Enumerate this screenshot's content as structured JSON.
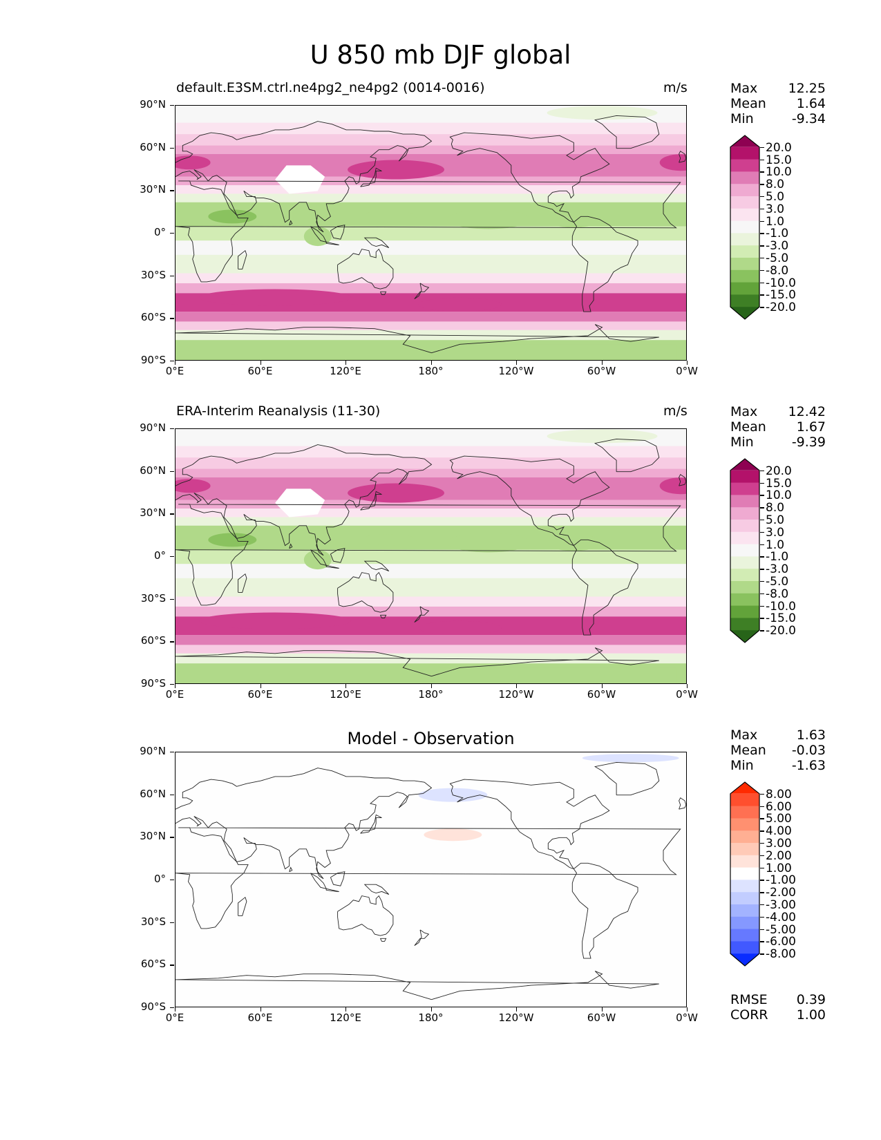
{
  "figure_title": "U 850 mb DJF global",
  "panels": [
    {
      "title": "default.E3SM.ctrl.ne4pg2_ne4pg2 (0014-0016)",
      "units": "m/s",
      "stats": [
        {
          "k": "Max",
          "v": "12.25"
        },
        {
          "k": "Mean",
          "v": "1.64"
        },
        {
          "k": "Min",
          "v": "-9.34"
        }
      ]
    },
    {
      "title": "ERA-Interim Reanalysis (11-30)",
      "units": "m/s",
      "stats": [
        {
          "k": "Max",
          "v": "12.42"
        },
        {
          "k": "Mean",
          "v": "1.67"
        },
        {
          "k": "Min",
          "v": "-9.39"
        }
      ]
    },
    {
      "title": "Model - Observation",
      "units": "",
      "stats": [
        {
          "k": "Max",
          "v": "1.63"
        },
        {
          "k": "Mean",
          "v": "-0.03"
        },
        {
          "k": "Min",
          "v": "-1.63"
        }
      ],
      "extra_stats": [
        {
          "k": "RMSE",
          "v": "0.39"
        },
        {
          "k": "CORR",
          "v": "1.00"
        }
      ]
    }
  ],
  "lat_ticks": [
    "90°N",
    "60°N",
    "30°N",
    "0°",
    "30°S",
    "60°S",
    "90°S"
  ],
  "lon_ticks": [
    "0°E",
    "60°E",
    "120°E",
    "180°",
    "120°W",
    "60°W",
    "0°W"
  ],
  "colorbar_main": {
    "labels": [
      "20.0",
      "15.0",
      "10.0",
      "8.0",
      "5.0",
      "3.0",
      "1.0",
      "-1.0",
      "-3.0",
      "-5.0",
      "-8.0",
      "-10.0",
      "-15.0",
      "-20.0"
    ],
    "colors": [
      "#8e0152",
      "#b3126a",
      "#cf3f8f",
      "#e07cb5",
      "#efaad1",
      "#f7cbe3",
      "#fbe4f0",
      "#f7f7f7",
      "#eaf4dc",
      "#d2ecb4",
      "#b0d989",
      "#8ac25f",
      "#62a33a",
      "#3e7f25",
      "#276419"
    ]
  },
  "colorbar_diff": {
    "labels": [
      "8.00",
      "6.00",
      "5.00",
      "4.00",
      "3.00",
      "2.00",
      "1.00",
      "-1.00",
      "-2.00",
      "-3.00",
      "-4.00",
      "-5.00",
      "-6.00",
      "-8.00"
    ],
    "colors": [
      "#ff2a00",
      "#ff4f2e",
      "#ff7052",
      "#ff9070",
      "#ffaf93",
      "#ffcab7",
      "#ffe3da",
      "#ffffff",
      "#dde3ff",
      "#c2cdff",
      "#a3b3ff",
      "#8598ff",
      "#6679ff",
      "#4159ff",
      "#0a2cff"
    ]
  },
  "map_fields": {
    "bands_main": [
      {
        "lat_top": 90,
        "lat_bot": 78,
        "color": "#f7f7f7"
      },
      {
        "lat_top": 78,
        "lat_bot": 70,
        "color": "#fbe4f0"
      },
      {
        "lat_top": 70,
        "lat_bot": 62,
        "color": "#f7cbe3"
      },
      {
        "lat_top": 62,
        "lat_bot": 56,
        "color": "#efaad1"
      },
      {
        "lat_top": 56,
        "lat_bot": 40,
        "color": "#e07cb5"
      },
      {
        "lat_top": 40,
        "lat_bot": 34,
        "color": "#efaad1"
      },
      {
        "lat_top": 34,
        "lat_bot": 28,
        "color": "#fbe4f0"
      },
      {
        "lat_top": 28,
        "lat_bot": 22,
        "color": "#eaf4dc"
      },
      {
        "lat_top": 22,
        "lat_bot": 5,
        "color": "#b0d989"
      },
      {
        "lat_top": 5,
        "lat_bot": -5,
        "color": "#d2ecb4"
      },
      {
        "lat_top": -5,
        "lat_bot": -15,
        "color": "#f7f7f7"
      },
      {
        "lat_top": -15,
        "lat_bot": -28,
        "color": "#eaf4dc"
      },
      {
        "lat_top": -28,
        "lat_bot": -35,
        "color": "#fbe4f0"
      },
      {
        "lat_top": -35,
        "lat_bot": -42,
        "color": "#efaad1"
      },
      {
        "lat_top": -42,
        "lat_bot": -55,
        "color": "#cf3f8f"
      },
      {
        "lat_top": -55,
        "lat_bot": -62,
        "color": "#e07cb5"
      },
      {
        "lat_top": -62,
        "lat_bot": -68,
        "color": "#f7cbe3"
      },
      {
        "lat_top": -68,
        "lat_bot": -75,
        "color": "#eaf4dc"
      },
      {
        "lat_top": -75,
        "lat_bot": -90,
        "color": "#b0d989"
      }
    ]
  }
}
